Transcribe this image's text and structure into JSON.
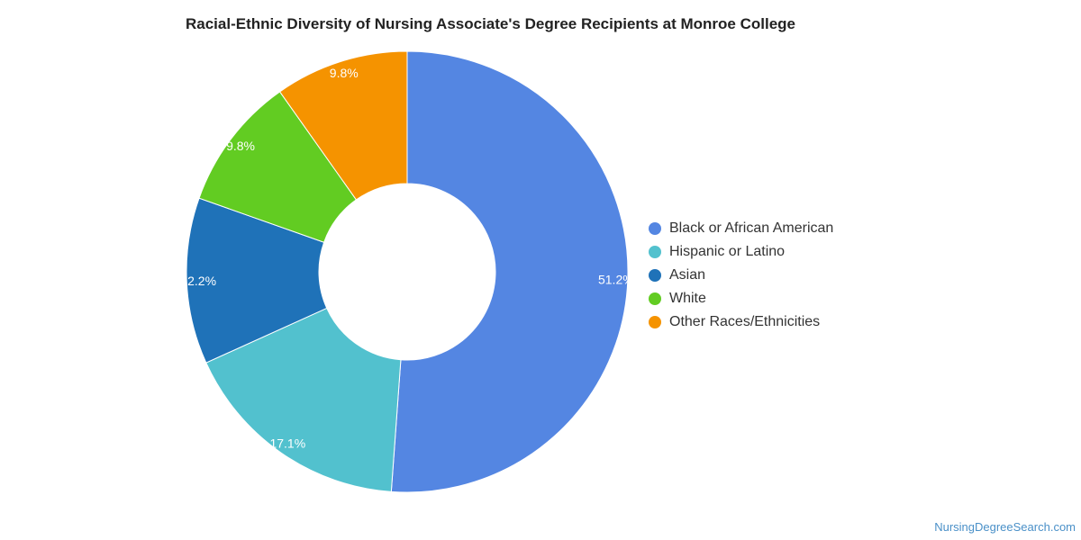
{
  "chart_data": {
    "type": "pie",
    "variant": "donut",
    "title": "Racial-Ethnic Diversity of Nursing Associate's Degree Recipients at Monroe College",
    "categories": [
      "Black or African American",
      "Hispanic or Latino",
      "Asian",
      "White",
      "Other Races/Ethnicities"
    ],
    "values": [
      51.2,
      17.1,
      12.2,
      9.8,
      9.8
    ],
    "value_labels": [
      "51.2%",
      "17.1%",
      "12.2%",
      "9.8%",
      "9.8%"
    ],
    "colors": [
      "#5486e2",
      "#52c1ce",
      "#1f72b8",
      "#62cc22",
      "#f59300"
    ],
    "legend_position": "right"
  },
  "watermark": "NursingDegreeSearch.com"
}
